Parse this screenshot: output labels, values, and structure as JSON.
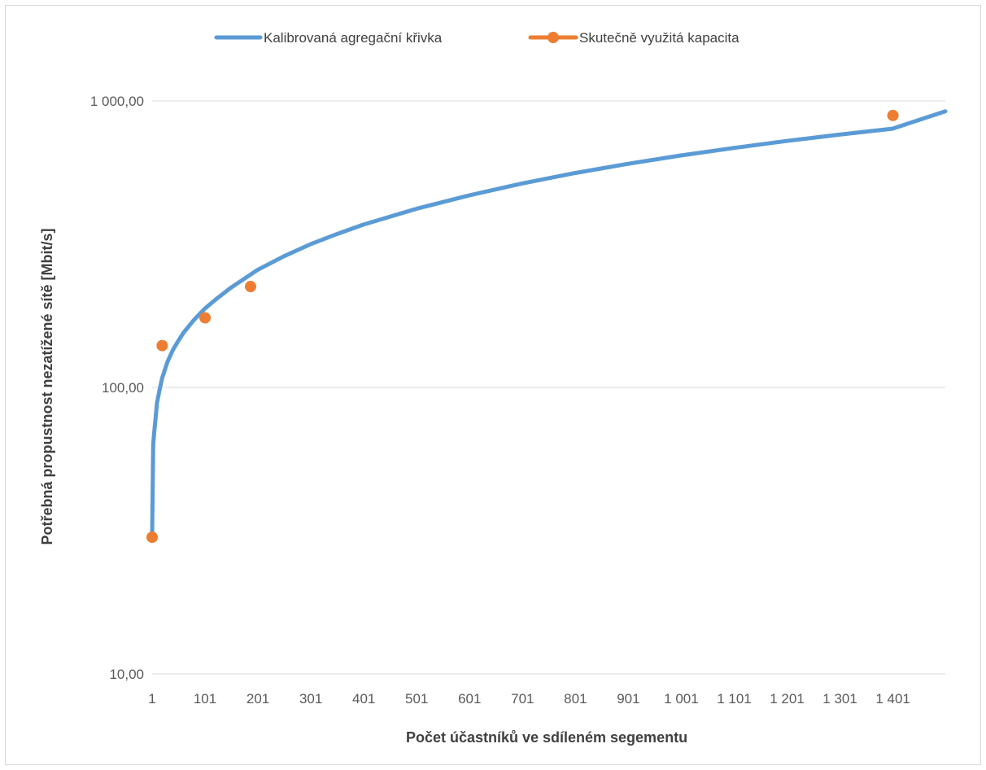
{
  "chart_data": {
    "type": "line",
    "title": "",
    "xlabel": "Počet účastníků ve sdíleném segementu",
    "ylabel": "Potřebná propustnost nezatížené sítě [Mbit/s]",
    "y_scale": "log",
    "ylim": [
      10,
      1000
    ],
    "xlim": [
      1,
      1500
    ],
    "grid": true,
    "legend_position": "top",
    "x_tick_labels": [
      "1",
      "101",
      "201",
      "301",
      "401",
      "501",
      "601",
      "701",
      "801",
      "901",
      "1 001",
      "1 101",
      "1 201",
      "1 301",
      "1 401"
    ],
    "x_ticks": [
      1,
      101,
      201,
      301,
      401,
      501,
      601,
      701,
      801,
      901,
      1001,
      1101,
      1201,
      1301,
      1401
    ],
    "y_ticks": [
      10,
      100,
      1000
    ],
    "y_tick_labels": [
      "10,00",
      "100,00",
      "1 000,00"
    ],
    "series": [
      {
        "name": "Kalibrovaná agregační křivka",
        "color": "#5b9bd5",
        "marker": "none",
        "x": [
          1,
          2,
          3,
          5,
          8,
          10,
          15,
          20,
          30,
          40,
          50,
          60,
          80,
          100,
          120,
          150,
          200,
          250,
          300,
          350,
          400,
          500,
          600,
          700,
          800,
          900,
          1000,
          1100,
          1200,
          1300,
          1400,
          1500
        ],
        "values": [
          30,
          45,
          63,
          70,
          80,
          88,
          98,
          108,
          123,
          135,
          145,
          155,
          172,
          188,
          202,
          223,
          257,
          287,
          316,
          343,
          370,
          420,
          468,
          515,
          560,
          603,
          645,
          685,
          725,
          763,
          800,
          920
        ]
      },
      {
        "name": "Skutečně využitá kapacita",
        "color": "#ed7d31",
        "marker": "circle",
        "x": [
          1,
          20,
          101,
          187,
          1401
        ],
        "values": [
          30,
          140,
          175,
          225,
          890
        ]
      }
    ]
  }
}
